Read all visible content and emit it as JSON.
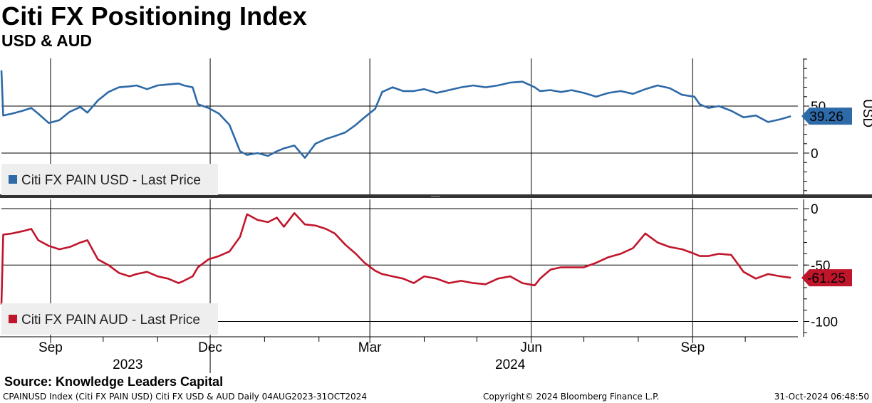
{
  "header": {
    "title": "Citi FX Positioning Index",
    "subtitle": "USD & AUD"
  },
  "colors": {
    "usd": "#2e6aa8",
    "aud": "#c0162c",
    "grid": "#000000"
  },
  "x_axis": {
    "months": [
      {
        "label": "Sep",
        "date": "2023-09-01",
        "major": false
      },
      {
        "label": "Dec",
        "date": "2023-12-01",
        "major": true
      },
      {
        "label": "Mar",
        "date": "2024-03-01",
        "major": false
      },
      {
        "label": "Jun",
        "date": "2024-06-01",
        "major": false
      },
      {
        "label": "Sep",
        "date": "2024-09-01",
        "major": false
      }
    ],
    "minor_months": [
      "2023-10-01",
      "2023-11-01",
      "2024-01-01",
      "2024-02-01",
      "2024-04-01",
      "2024-05-01",
      "2024-07-01",
      "2024-08-01",
      "2024-10-01"
    ],
    "years": [
      {
        "label": "2023",
        "date": "2023-10-15"
      },
      {
        "label": "2024",
        "date": "2024-05-20"
      }
    ],
    "start": "2023-08-04",
    "end": "2024-10-31"
  },
  "chart_data": [
    {
      "type": "line",
      "legend": "Citi FX PAIN USD - Last Price",
      "axis_label": "USD",
      "ylim": [
        -50,
        100
      ],
      "yticks": [
        0,
        50
      ],
      "last_value": "39.26",
      "series": [
        {
          "name": "Citi FX PAIN USD - Last Price",
          "x": [
            "2023-08-04",
            "2023-08-05",
            "2023-08-10",
            "2023-08-16",
            "2023-08-21",
            "2023-08-25",
            "2023-08-31",
            "2023-09-06",
            "2023-09-12",
            "2023-09-18",
            "2023-09-22",
            "2023-09-28",
            "2023-10-04",
            "2023-10-10",
            "2023-10-16",
            "2023-10-20",
            "2023-10-26",
            "2023-11-01",
            "2023-11-07",
            "2023-11-13",
            "2023-11-16",
            "2023-11-21",
            "2023-11-24",
            "2023-11-30",
            "2023-12-06",
            "2023-12-12",
            "2023-12-18",
            "2023-12-22",
            "2023-12-28",
            "2024-01-03",
            "2024-01-08",
            "2024-01-12",
            "2024-01-18",
            "2024-01-24",
            "2024-01-30",
            "2024-02-05",
            "2024-02-10",
            "2024-02-16",
            "2024-02-22",
            "2024-02-27",
            "2024-03-04",
            "2024-03-08",
            "2024-03-14",
            "2024-03-20",
            "2024-03-26",
            "2024-04-01",
            "2024-04-08",
            "2024-04-15",
            "2024-04-22",
            "2024-04-29",
            "2024-05-06",
            "2024-05-13",
            "2024-05-20",
            "2024-05-27",
            "2024-06-03",
            "2024-06-06",
            "2024-06-12",
            "2024-06-18",
            "2024-06-24",
            "2024-07-01",
            "2024-07-08",
            "2024-07-15",
            "2024-07-22",
            "2024-07-29",
            "2024-08-05",
            "2024-08-12",
            "2024-08-19",
            "2024-08-26",
            "2024-09-02",
            "2024-09-05",
            "2024-09-10",
            "2024-09-16",
            "2024-09-23",
            "2024-09-30",
            "2024-10-07",
            "2024-10-14",
            "2024-10-21",
            "2024-10-27"
          ],
          "values": [
            88,
            40,
            42,
            45,
            48,
            42,
            32,
            35,
            44,
            49,
            43,
            56,
            65,
            70,
            71,
            72,
            68,
            72,
            73,
            74,
            72,
            70,
            52,
            48,
            42,
            30,
            2,
            -2,
            0,
            -3,
            2,
            5,
            8,
            -5,
            10,
            15,
            18,
            22,
            30,
            38,
            47,
            65,
            70,
            66,
            66,
            68,
            64,
            67,
            70,
            72,
            70,
            72,
            75,
            76,
            70,
            66,
            67,
            65,
            67,
            64,
            60,
            64,
            66,
            63,
            68,
            72,
            69,
            62,
            60,
            52,
            48,
            50,
            45,
            38,
            40,
            33,
            36,
            39.26
          ]
        }
      ]
    },
    {
      "type": "line",
      "legend": "Citi FX PAIN AUD - Last Price",
      "axis_label": "",
      "ylim": [
        -110,
        5
      ],
      "yticks": [
        0,
        -50,
        -100
      ],
      "last_value": "-61.25",
      "series": [
        {
          "name": "Citi FX PAIN AUD - Last Price",
          "x": [
            "2023-08-04",
            "2023-08-05",
            "2023-08-10",
            "2023-08-16",
            "2023-08-21",
            "2023-08-25",
            "2023-08-31",
            "2023-09-06",
            "2023-09-12",
            "2023-09-18",
            "2023-09-22",
            "2023-09-28",
            "2023-10-04",
            "2023-10-10",
            "2023-10-16",
            "2023-10-20",
            "2023-10-26",
            "2023-11-01",
            "2023-11-07",
            "2023-11-13",
            "2023-11-16",
            "2023-11-21",
            "2023-11-24",
            "2023-11-30",
            "2023-12-06",
            "2023-12-12",
            "2023-12-18",
            "2023-12-22",
            "2023-12-28",
            "2024-01-03",
            "2024-01-08",
            "2024-01-12",
            "2024-01-18",
            "2024-01-24",
            "2024-01-30",
            "2024-02-05",
            "2024-02-10",
            "2024-02-16",
            "2024-02-22",
            "2024-02-27",
            "2024-03-04",
            "2024-03-08",
            "2024-03-14",
            "2024-03-20",
            "2024-03-26",
            "2024-04-01",
            "2024-04-08",
            "2024-04-15",
            "2024-04-22",
            "2024-04-29",
            "2024-05-06",
            "2024-05-13",
            "2024-05-20",
            "2024-05-27",
            "2024-06-03",
            "2024-06-06",
            "2024-06-12",
            "2024-06-18",
            "2024-06-24",
            "2024-07-01",
            "2024-07-08",
            "2024-07-15",
            "2024-07-22",
            "2024-07-29",
            "2024-08-05",
            "2024-08-12",
            "2024-08-19",
            "2024-08-26",
            "2024-09-02",
            "2024-09-05",
            "2024-09-10",
            "2024-09-16",
            "2024-09-23",
            "2024-09-30",
            "2024-10-07",
            "2024-10-14",
            "2024-10-21",
            "2024-10-27"
          ],
          "values": [
            -85,
            -23,
            -22,
            -20,
            -18,
            -28,
            -33,
            -36,
            -34,
            -30,
            -28,
            -45,
            -50,
            -57,
            -60,
            -58,
            -56,
            -60,
            -62,
            -66,
            -64,
            -60,
            -52,
            -45,
            -42,
            -38,
            -25,
            -5,
            -10,
            -12,
            -8,
            -16,
            -4,
            -14,
            -15,
            -18,
            -22,
            -32,
            -40,
            -48,
            -55,
            -58,
            -60,
            -62,
            -66,
            -60,
            -62,
            -66,
            -64,
            -66,
            -67,
            -62,
            -60,
            -66,
            -68,
            -62,
            -54,
            -52,
            -52,
            -52,
            -48,
            -43,
            -40,
            -35,
            -22,
            -30,
            -34,
            -36,
            -40,
            -42,
            -42,
            -40,
            -41,
            -56,
            -62,
            -58,
            -60,
            -61.25
          ]
        }
      ]
    }
  ],
  "source": "Source: Knowledge Leaders Capital",
  "footer": {
    "left": "CPAINUSD Index (Citi FX PAIN USD) Citi FX USD & AUD  Daily 04AUG2023-31OCT2024",
    "center": "Copyright© 2024 Bloomberg Finance L.P.",
    "right": "31-Oct-2024 06:48:50"
  }
}
